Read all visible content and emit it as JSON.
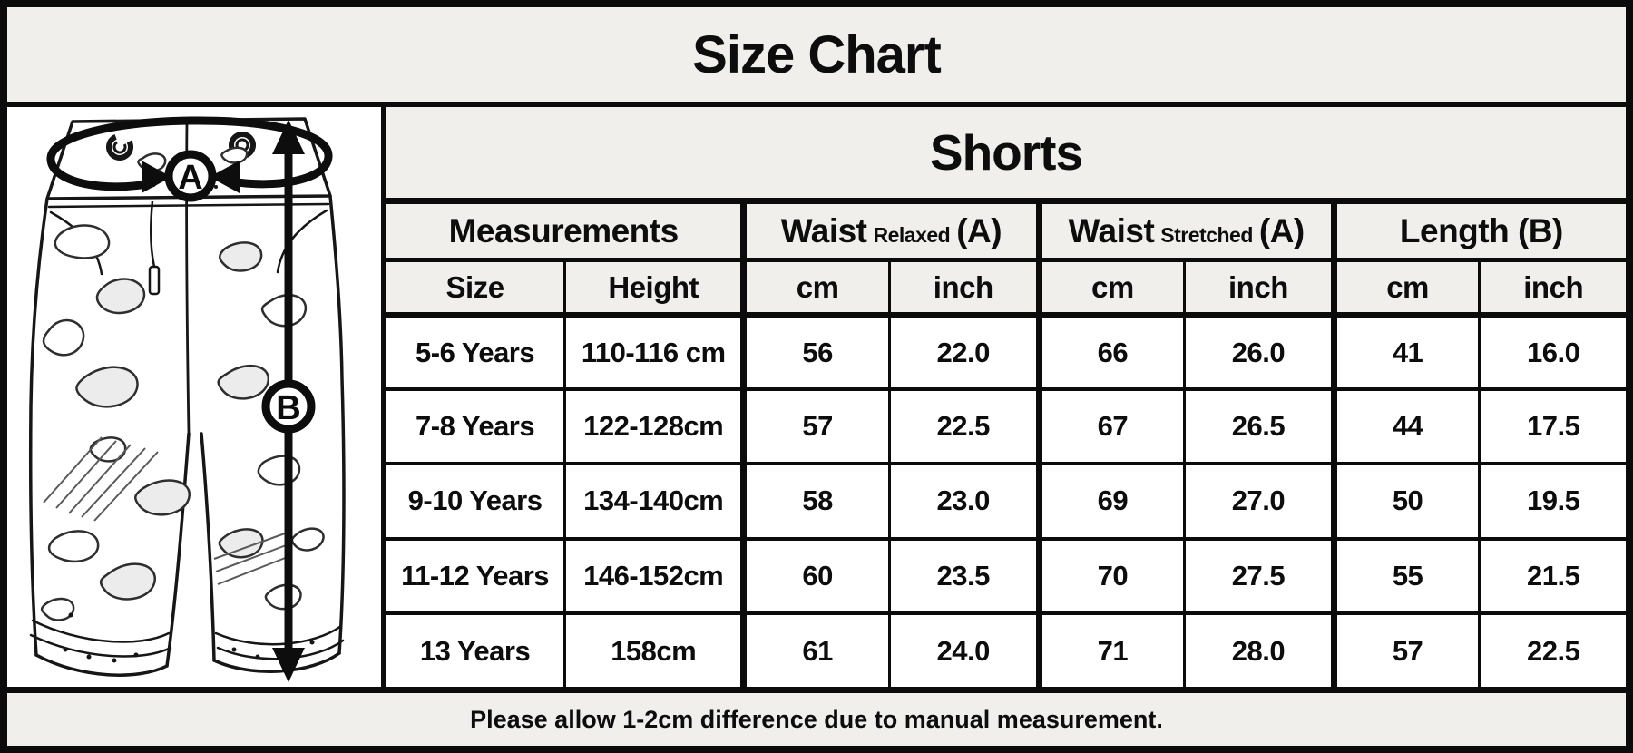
{
  "title": "Size Chart",
  "shorts_header": "Shorts",
  "diagram": {
    "label_a": "A",
    "label_b": "B"
  },
  "table": {
    "groups": [
      {
        "main": "Measurements",
        "sub": "",
        "tail": ""
      },
      {
        "main": "Waist",
        "sub": "Relaxed",
        "tail": "(A)"
      },
      {
        "main": "Waist",
        "sub": "Stretched",
        "tail": "(A)"
      },
      {
        "main": "Length (B)",
        "sub": "",
        "tail": ""
      }
    ],
    "subheaders": [
      "Size",
      "Height",
      "cm",
      "inch",
      "cm",
      "inch",
      "cm",
      "inch"
    ],
    "rows": [
      [
        "5-6 Years",
        "110-116 cm",
        "56",
        "22.0",
        "66",
        "26.0",
        "41",
        "16.0"
      ],
      [
        "7-8 Years",
        "122-128cm",
        "57",
        "22.5",
        "67",
        "26.5",
        "44",
        "17.5"
      ],
      [
        "9-10 Years",
        "134-140cm",
        "58",
        "23.0",
        "69",
        "27.0",
        "50",
        "19.5"
      ],
      [
        "11-12 Years",
        "146-152cm",
        "60",
        "23.5",
        "70",
        "27.5",
        "55",
        "21.5"
      ],
      [
        "13 Years",
        "158cm",
        "61",
        "24.0",
        "71",
        "28.0",
        "57",
        "22.5"
      ]
    ]
  },
  "footer_note": "Please allow 1-2cm difference due to manual measurement.",
  "colors": {
    "band_bg": "#f0efec",
    "cell_bg": "#ffffff",
    "ink": "#0d0d0d"
  }
}
